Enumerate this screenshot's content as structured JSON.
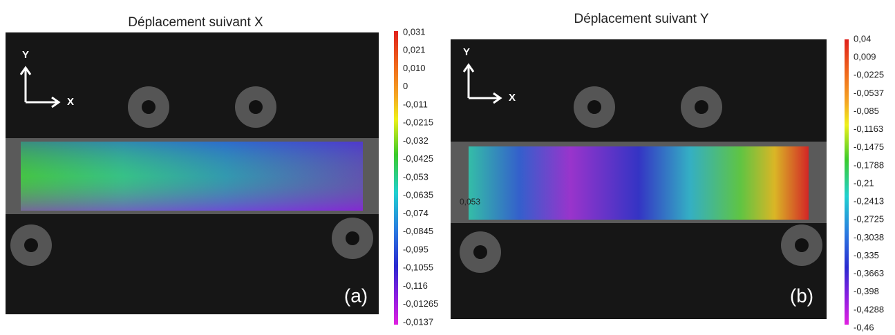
{
  "panels": [
    {
      "title": "Déplacement suivant X",
      "label": "(a)",
      "axis_y": "Y",
      "axis_x": "X",
      "colorbar_labels": [
        "0,031",
        "0,021",
        "0,010",
        "0",
        "-0,011",
        "-0,0215",
        "-0,032",
        "-0,0425",
        "-0,053",
        "-0,0635",
        "-0,074",
        "-0,0845",
        "-0,095",
        "-0,1055",
        "-0,116",
        "-0,01265",
        "-0,0137"
      ]
    },
    {
      "title": "Déplacement suivant Y",
      "label": "(b)",
      "axis_y": "Y",
      "axis_x": "X",
      "annotation": "0,053",
      "colorbar_labels": [
        "0,04",
        "0,009",
        "-0,0225",
        "-0,0537",
        "-0,085",
        "-0,1163",
        "-0,1475",
        "-0,1788",
        "-0,21",
        "-0,2413",
        "-0,2725",
        "-0,3038",
        "-0,335",
        "-0,3663",
        "-0,398",
        "-0,4288",
        "-0,46"
      ]
    }
  ]
}
